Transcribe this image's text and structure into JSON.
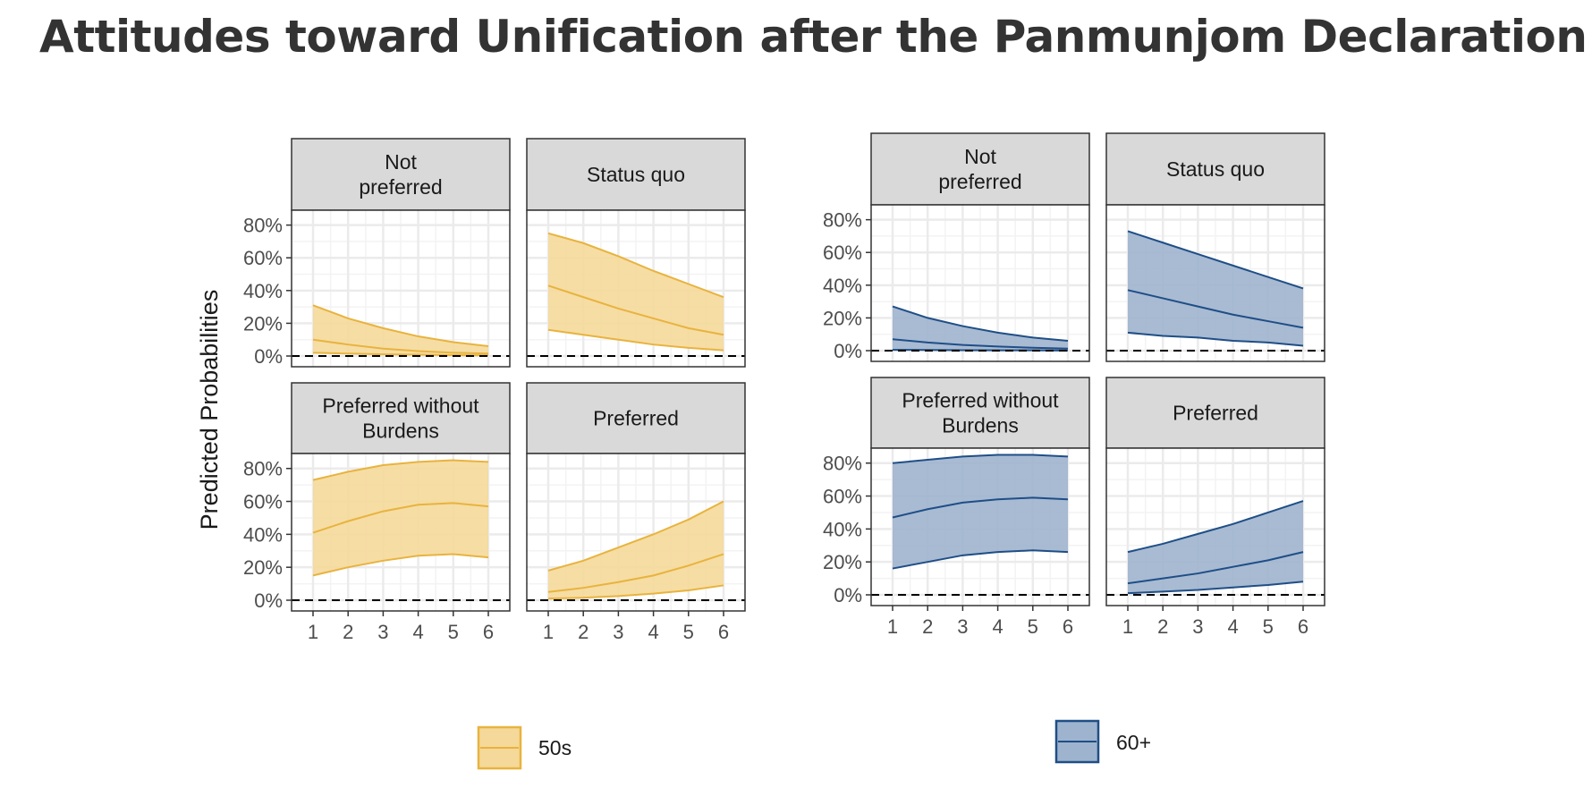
{
  "title": "Attitudes toward Unification after the Panmunjom Declaration",
  "colors": {
    "s50_line": "#E8B33E",
    "s50_fill": "#F5D99A",
    "s60_line": "#1F4E86",
    "s60_fill": "#9EB4CE",
    "strip": "#D9D9D9",
    "grid": "#EBEBEB",
    "border": "#333333"
  },
  "chart_data": [
    {
      "type": "area",
      "y_axis_label": "Predicted Probabilities",
      "x": [
        1,
        2,
        3,
        4,
        5,
        6
      ],
      "xticks": [
        "1",
        "2",
        "3",
        "4",
        "5",
        "6"
      ],
      "yticks": [
        "0%",
        "20%",
        "40%",
        "60%",
        "80%"
      ],
      "ylim": [
        0,
        0.88
      ],
      "reference_line": 0,
      "legend": {
        "label": "50s",
        "placement": "bottom"
      },
      "panels": [
        {
          "strip": [
            "Not",
            "preferred"
          ],
          "lower": [
            0.02,
            0.015,
            0.01,
            0.008,
            0.005,
            0.004
          ],
          "mid": [
            0.1,
            0.07,
            0.045,
            0.03,
            0.02,
            0.015
          ],
          "upper": [
            0.31,
            0.23,
            0.17,
            0.12,
            0.085,
            0.06
          ]
        },
        {
          "strip": [
            "Status quo"
          ],
          "lower": [
            0.16,
            0.13,
            0.1,
            0.07,
            0.05,
            0.035
          ],
          "mid": [
            0.43,
            0.36,
            0.29,
            0.23,
            0.17,
            0.13
          ],
          "upper": [
            0.75,
            0.69,
            0.61,
            0.52,
            0.44,
            0.36
          ]
        },
        {
          "strip": [
            "Preferred without",
            "Burdens"
          ],
          "lower": [
            0.15,
            0.2,
            0.24,
            0.27,
            0.28,
            0.26
          ],
          "mid": [
            0.41,
            0.48,
            0.54,
            0.58,
            0.59,
            0.57
          ],
          "upper": [
            0.73,
            0.78,
            0.82,
            0.84,
            0.85,
            0.84
          ]
        },
        {
          "strip": [
            "Preferred"
          ],
          "lower": [
            0.01,
            0.015,
            0.025,
            0.04,
            0.06,
            0.09
          ],
          "mid": [
            0.05,
            0.075,
            0.11,
            0.15,
            0.21,
            0.28
          ],
          "upper": [
            0.18,
            0.24,
            0.32,
            0.4,
            0.49,
            0.6
          ]
        }
      ]
    },
    {
      "type": "area",
      "x": [
        1,
        2,
        3,
        4,
        5,
        6
      ],
      "xticks": [
        "1",
        "2",
        "3",
        "4",
        "5",
        "6"
      ],
      "yticks": [
        "0%",
        "20%",
        "40%",
        "60%",
        "80%"
      ],
      "ylim": [
        0,
        0.88
      ],
      "reference_line": 0,
      "legend": {
        "label": "60+",
        "placement": "bottom"
      },
      "panels": [
        {
          "strip": [
            "Not",
            "preferred"
          ],
          "lower": [
            0.005,
            0.004,
            0.003,
            0.002,
            0.002,
            0.001
          ],
          "mid": [
            0.07,
            0.05,
            0.035,
            0.025,
            0.018,
            0.012
          ],
          "upper": [
            0.27,
            0.2,
            0.15,
            0.11,
            0.08,
            0.06
          ]
        },
        {
          "strip": [
            "Status quo"
          ],
          "lower": [
            0.11,
            0.09,
            0.08,
            0.06,
            0.05,
            0.03
          ],
          "mid": [
            0.37,
            0.32,
            0.27,
            0.22,
            0.18,
            0.14
          ],
          "upper": [
            0.73,
            0.66,
            0.59,
            0.52,
            0.45,
            0.38
          ]
        },
        {
          "strip": [
            "Preferred without",
            "Burdens"
          ],
          "lower": [
            0.16,
            0.2,
            0.24,
            0.26,
            0.27,
            0.26
          ],
          "mid": [
            0.47,
            0.52,
            0.56,
            0.58,
            0.59,
            0.58
          ],
          "upper": [
            0.8,
            0.82,
            0.84,
            0.85,
            0.85,
            0.84
          ]
        },
        {
          "strip": [
            "Preferred"
          ],
          "lower": [
            0.01,
            0.02,
            0.03,
            0.045,
            0.06,
            0.08
          ],
          "mid": [
            0.07,
            0.1,
            0.13,
            0.17,
            0.21,
            0.26
          ],
          "upper": [
            0.26,
            0.31,
            0.37,
            0.43,
            0.5,
            0.57
          ]
        }
      ]
    }
  ]
}
